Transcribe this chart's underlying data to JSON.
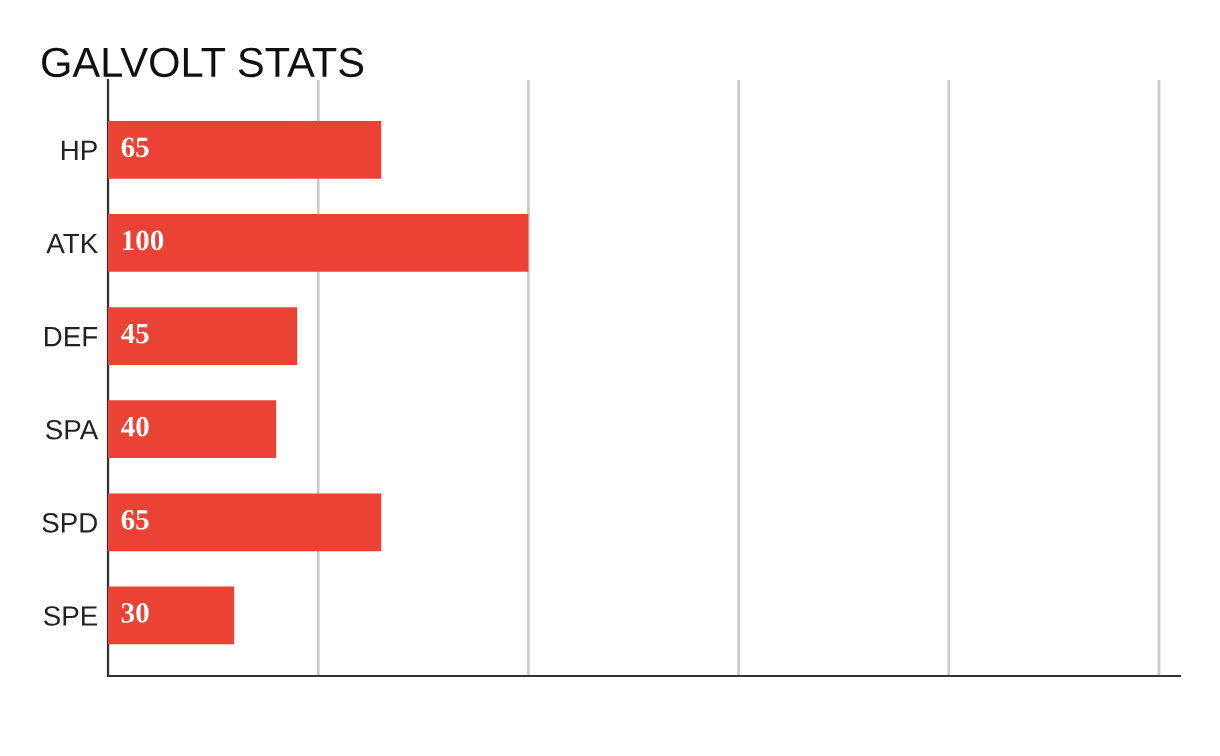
{
  "chart_data": {
    "type": "bar",
    "orientation": "horizontal",
    "title": "GALVOLT STATS",
    "categories": [
      "HP",
      "ATK",
      "DEF",
      "SPA",
      "SPD",
      "SPE"
    ],
    "values": [
      65,
      100,
      45,
      40,
      65,
      30
    ],
    "color": "#ea4335",
    "xlim": [
      0,
      255
    ],
    "xticks": [
      {
        "value": 0,
        "label": null
      },
      {
        "value": 50,
        "label": null
      },
      {
        "value": 100,
        "label": null
      },
      {
        "value": 150,
        "label": null
      },
      {
        "value": 200,
        "label": null
      },
      {
        "value": 250,
        "label": null
      }
    ],
    "tick_labels": "y",
    "grid": "x",
    "data_labels": true,
    "legend": false
  }
}
